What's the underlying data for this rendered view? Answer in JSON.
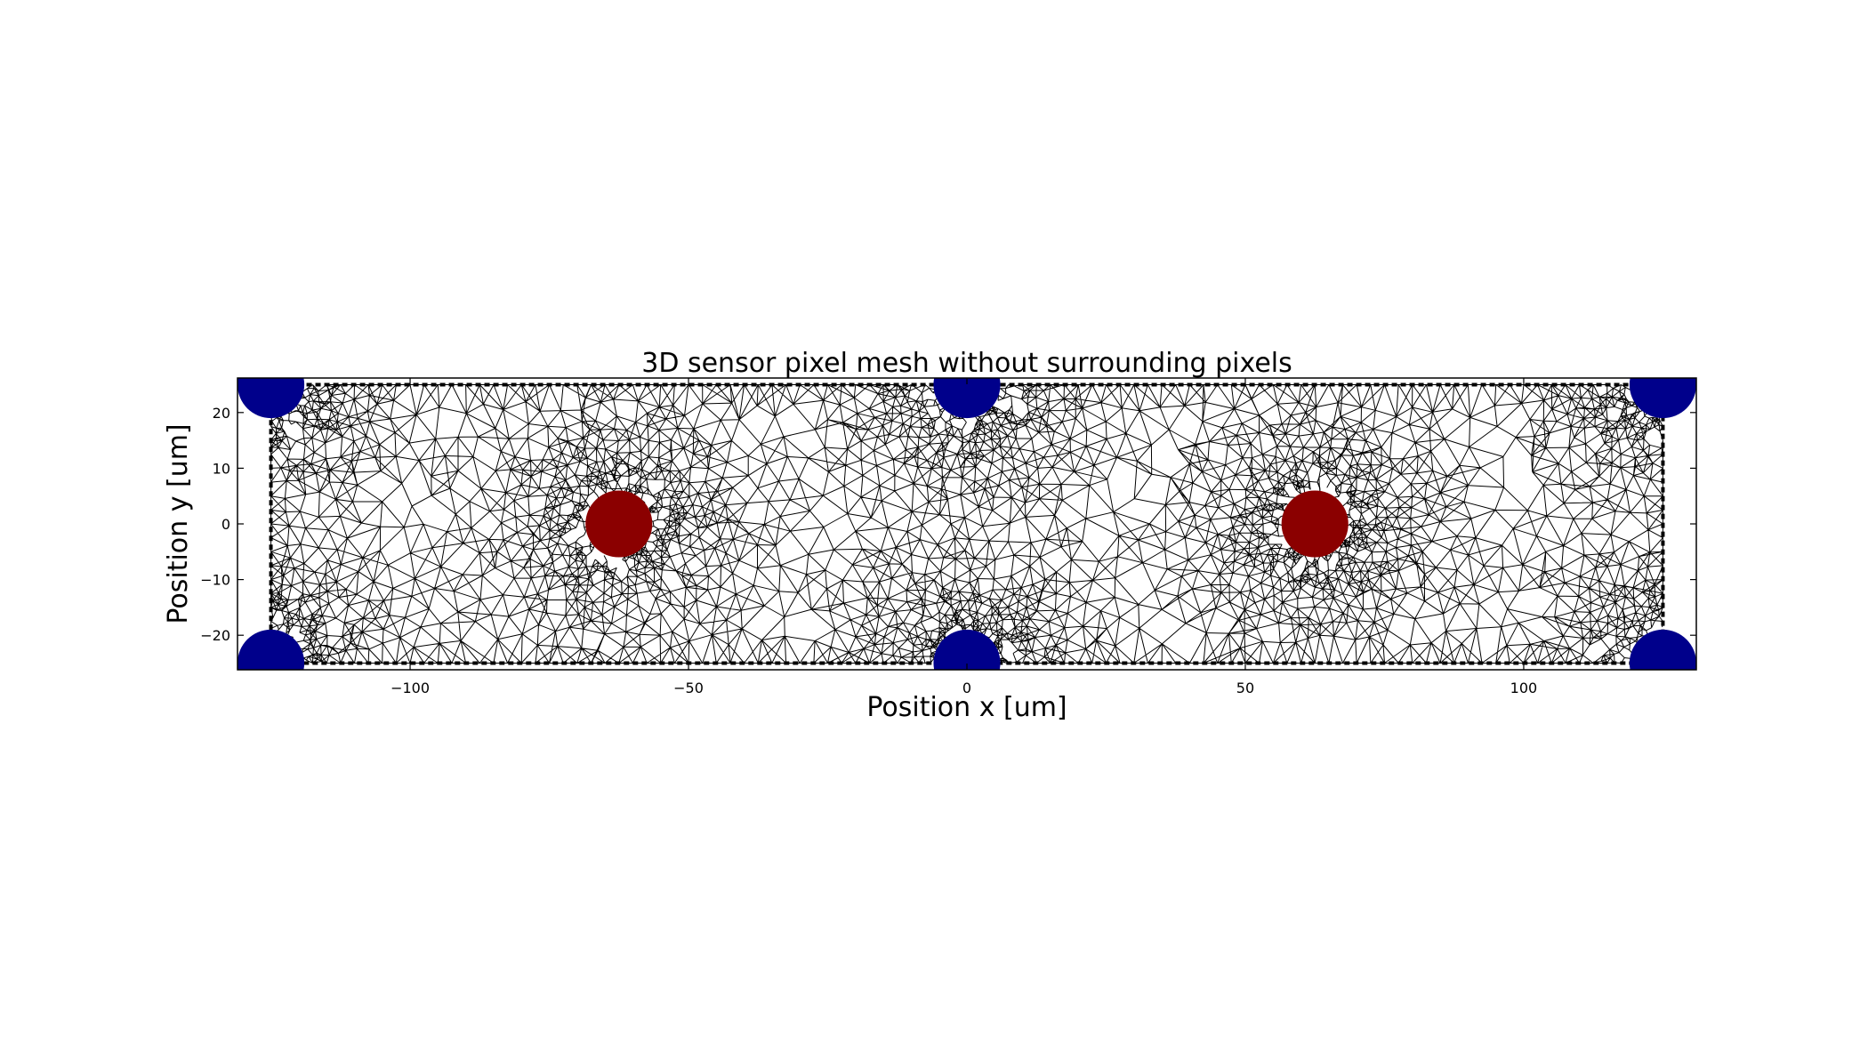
{
  "chart_data": {
    "type": "scatter",
    "title": "3D sensor pixel mesh without surrounding pixels",
    "xlabel": "Position x [um]",
    "ylabel": "Position y [um]",
    "xlim": [
      -131,
      131
    ],
    "ylim": [
      -26.2,
      26.2
    ],
    "xticks": [
      -100,
      -50,
      0,
      50,
      100
    ],
    "xtick_labels": [
      "−100",
      "−50",
      "0",
      "50",
      "100"
    ],
    "yticks": [
      -20,
      -10,
      0,
      10,
      20
    ],
    "ytick_labels": [
      "−20",
      "−10",
      "0",
      "10",
      "20"
    ],
    "grid": false,
    "pixel_boundary": {
      "x": [
        -125,
        125
      ],
      "y": [
        -25,
        25
      ]
    },
    "mesh": {
      "kind": "triangular",
      "color": "#000000"
    },
    "series": [
      {
        "color": "#8b0000",
        "points": [
          {
            "x": -62.5,
            "y": 0,
            "r": 6
          },
          {
            "x": 62.5,
            "y": 0,
            "r": 6
          }
        ]
      },
      {
        "color": "#00008b",
        "points": [
          {
            "x": -125,
            "y": 25,
            "r": 6
          },
          {
            "x": 0,
            "y": 25,
            "r": 6
          },
          {
            "x": 125,
            "y": 25,
            "r": 6
          },
          {
            "x": -125,
            "y": -25,
            "r": 6
          },
          {
            "x": 0,
            "y": -25,
            "r": 6
          },
          {
            "x": 125,
            "y": -25,
            "r": 6
          }
        ]
      }
    ]
  }
}
